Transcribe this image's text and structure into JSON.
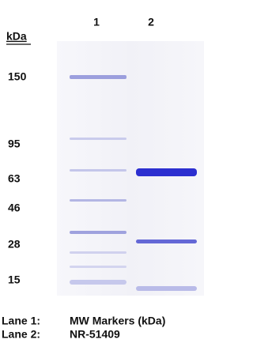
{
  "header": {
    "lane_numbers": [
      "1",
      "2"
    ],
    "unit": "kDa"
  },
  "markers": [
    "150",
    "95",
    "63",
    "46",
    "28",
    "15"
  ],
  "legend": [
    {
      "label": "Lane 1:",
      "description": "MW Markers (kDa)"
    },
    {
      "label": "Lane 2:",
      "description": "NR-51409"
    }
  ]
}
